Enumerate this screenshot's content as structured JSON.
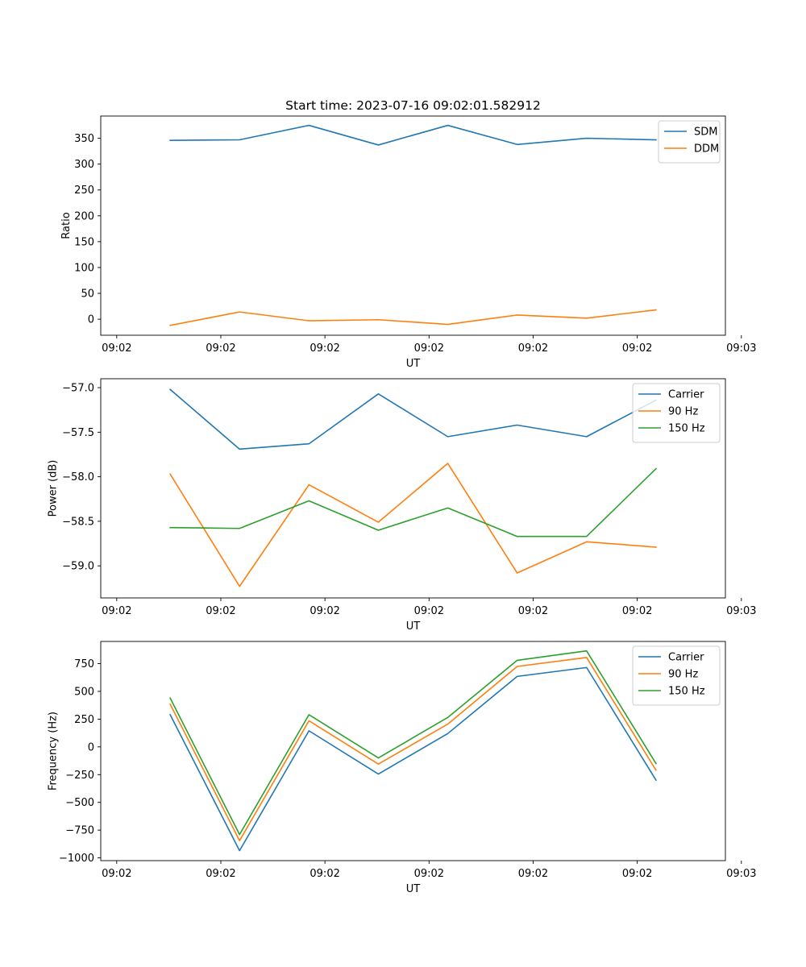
{
  "figure_title": "Start time: 2023-07-16 09:02:01.582912",
  "colors": {
    "blue": "#1f77b4",
    "orange": "#ff7f0e",
    "green": "#2ca02c"
  },
  "chart_data": [
    {
      "type": "line",
      "title": "Start time: 2023-07-16 09:02:01.582912",
      "xlabel": "UT",
      "ylabel": "Ratio",
      "x": [
        1,
        2,
        3,
        4,
        5,
        6,
        7,
        8
      ],
      "xlim": [
        0,
        9
      ],
      "xticks": [
        0.23,
        1.73,
        3.23,
        4.73,
        6.23,
        7.73,
        9.23
      ],
      "xtick_labels": [
        "09:02",
        "09:02",
        "09:02",
        "09:02",
        "09:02",
        "09:02",
        "09:03"
      ],
      "ylim": [
        -31,
        393
      ],
      "yticks": [
        0,
        50,
        100,
        150,
        200,
        250,
        300,
        350
      ],
      "ytick_labels": [
        "0",
        "50",
        "100",
        "150",
        "200",
        "250",
        "300",
        "350"
      ],
      "legend": "top-right",
      "grid": false,
      "series": [
        {
          "name": "SDM",
          "color": "#1f77b4",
          "values": [
            346,
            347,
            375,
            337,
            375,
            338,
            350,
            347
          ]
        },
        {
          "name": "DDM",
          "color": "#ff7f0e",
          "values": [
            -12,
            14,
            -3,
            -1,
            -10,
            8,
            2,
            18
          ]
        }
      ]
    },
    {
      "type": "line",
      "title": "",
      "xlabel": "UT",
      "ylabel": "Power (dB)",
      "x": [
        1,
        2,
        3,
        4,
        5,
        6,
        7,
        8
      ],
      "xlim": [
        0,
        9
      ],
      "xticks": [
        0.23,
        1.73,
        3.23,
        4.73,
        6.23,
        7.73,
        9.23
      ],
      "xtick_labels": [
        "09:02",
        "09:02",
        "09:02",
        "09:02",
        "09:02",
        "09:02",
        "09:03"
      ],
      "ylim": [
        -59.36,
        -56.9
      ],
      "yticks": [
        -59.0,
        -58.5,
        -58.0,
        -57.5,
        -57.0
      ],
      "ytick_labels": [
        "−59.0",
        "−58.5",
        "−58.0",
        "−57.5",
        "−57.0"
      ],
      "legend": "top-right",
      "grid": false,
      "series": [
        {
          "name": "Carrier",
          "color": "#1f77b4",
          "values": [
            -57.02,
            -57.69,
            -57.63,
            -57.07,
            -57.55,
            -57.42,
            -57.55,
            -57.14
          ]
        },
        {
          "name": "90 Hz",
          "color": "#ff7f0e",
          "values": [
            -57.97,
            -59.23,
            -58.09,
            -58.51,
            -57.85,
            -59.08,
            -58.73,
            -58.79
          ]
        },
        {
          "name": "150 Hz",
          "color": "#2ca02c",
          "values": [
            -58.57,
            -58.58,
            -58.27,
            -58.6,
            -58.35,
            -58.67,
            -58.67,
            -57.91
          ]
        }
      ]
    },
    {
      "type": "line",
      "title": "",
      "xlabel": "UT",
      "ylabel": "Frequency (Hz)",
      "x": [
        1,
        2,
        3,
        4,
        5,
        6,
        7,
        8
      ],
      "xlim": [
        0,
        9
      ],
      "xticks": [
        0.23,
        1.73,
        3.23,
        4.73,
        6.23,
        7.73,
        9.23
      ],
      "xtick_labels": [
        "09:02",
        "09:02",
        "09:02",
        "09:02",
        "09:02",
        "09:02",
        "09:03"
      ],
      "ylim": [
        -1025,
        950
      ],
      "yticks": [
        -1000,
        -750,
        -500,
        -250,
        0,
        250,
        500,
        750
      ],
      "ytick_labels": [
        "−1000",
        "−750",
        "−500",
        "−250",
        "0",
        "250",
        "500",
        "750"
      ],
      "legend": "top-right",
      "grid": false,
      "series": [
        {
          "name": "Carrier",
          "color": "#1f77b4",
          "values": [
            290,
            -935,
            145,
            -245,
            120,
            635,
            715,
            -300
          ]
        },
        {
          "name": "90 Hz",
          "color": "#ff7f0e",
          "values": [
            385,
            -845,
            235,
            -155,
            205,
            725,
            805,
            -210
          ]
        },
        {
          "name": "150 Hz",
          "color": "#2ca02c",
          "values": [
            440,
            -790,
            290,
            -100,
            265,
            780,
            865,
            -150
          ]
        }
      ]
    }
  ]
}
